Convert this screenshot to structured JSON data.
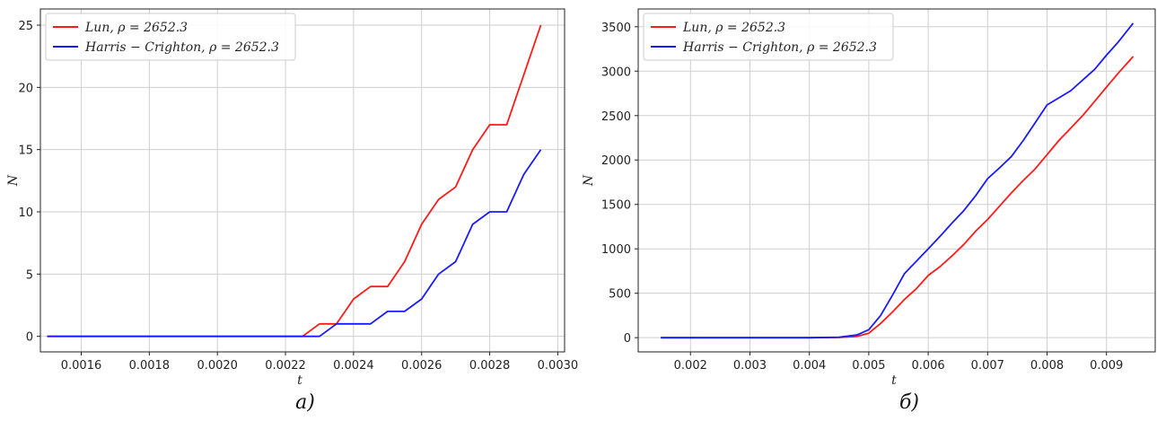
{
  "chart_data": [
    {
      "type": "line",
      "caption": "а)",
      "xlabel": "t",
      "ylabel": "N",
      "xlim": [
        0.00148,
        0.00302
      ],
      "ylim": [
        -1.25,
        26.3
      ],
      "xticks": [
        0.0016,
        0.0018,
        0.002,
        0.0022,
        0.0024,
        0.0026,
        0.0028,
        0.003
      ],
      "xtick_labels": [
        "0.0016",
        "0.0018",
        "0.0020",
        "0.0022",
        "0.0024",
        "0.0026",
        "0.0028",
        "0.0030"
      ],
      "yticks": [
        0,
        5,
        10,
        15,
        20,
        25
      ],
      "ytick_labels": [
        "0",
        "5",
        "10",
        "15",
        "20",
        "25"
      ],
      "grid": true,
      "legend_position": "top-left",
      "series": [
        {
          "name": "Lun, ρ = 2652.3",
          "color": "#ff1a1a",
          "x": [
            0.0015,
            0.00225,
            0.0023,
            0.00235,
            0.0024,
            0.00245,
            0.0025,
            0.00255,
            0.0026,
            0.00265,
            0.0027,
            0.00275,
            0.0028,
            0.00285,
            0.0029,
            0.00295
          ],
          "y": [
            0,
            0,
            1,
            1,
            3,
            4,
            4,
            6,
            9,
            11,
            12,
            15,
            17,
            17,
            21,
            25
          ]
        },
        {
          "name": "Harris − Crighton, ρ = 2652.3",
          "color": "#1a1aff",
          "x": [
            0.0015,
            0.0023,
            0.00235,
            0.0024,
            0.00245,
            0.0025,
            0.00255,
            0.0026,
            0.00265,
            0.0027,
            0.00275,
            0.0028,
            0.00285,
            0.0029,
            0.00295
          ],
          "y": [
            0,
            0,
            1,
            1,
            1,
            2,
            2,
            3,
            5,
            6,
            9,
            10,
            10,
            13,
            15
          ]
        }
      ]
    },
    {
      "type": "line",
      "caption": "б)",
      "xlabel": "t",
      "ylabel": "N",
      "xlim": [
        0.00112,
        0.00982
      ],
      "ylim": [
        -160,
        3700
      ],
      "xticks": [
        0.002,
        0.003,
        0.004,
        0.005,
        0.006,
        0.007,
        0.008,
        0.009
      ],
      "xtick_labels": [
        "0.002",
        "0.003",
        "0.004",
        "0.005",
        "0.006",
        "0.007",
        "0.008",
        "0.009"
      ],
      "yticks": [
        0,
        500,
        1000,
        1500,
        2000,
        2500,
        3000,
        3500
      ],
      "ytick_labels": [
        "0",
        "500",
        "1000",
        "1500",
        "2000",
        "2500",
        "3000",
        "3500"
      ],
      "grid": true,
      "legend_position": "top-left",
      "series": [
        {
          "name": "Lun, ρ = 2652.3",
          "color": "#ff1a1a",
          "x": [
            0.0015,
            0.004,
            0.0045,
            0.0048,
            0.005,
            0.0052,
            0.0054,
            0.0056,
            0.0058,
            0.006,
            0.0062,
            0.0064,
            0.0066,
            0.0068,
            0.007,
            0.0072,
            0.0074,
            0.0076,
            0.0078,
            0.008,
            0.0082,
            0.0084,
            0.0086,
            0.0088,
            0.009,
            0.0092,
            0.00945
          ],
          "y": [
            0,
            0,
            3,
            15,
            50,
            160,
            290,
            430,
            550,
            700,
            800,
            920,
            1050,
            1200,
            1330,
            1480,
            1630,
            1770,
            1900,
            2060,
            2220,
            2360,
            2500,
            2660,
            2820,
            2980,
            3165
          ]
        },
        {
          "name": "Harris − Crighton, ρ = 2652.3",
          "color": "#1a1aff",
          "x": [
            0.0015,
            0.004,
            0.0045,
            0.0048,
            0.005,
            0.0052,
            0.0054,
            0.0056,
            0.0058,
            0.006,
            0.0062,
            0.0064,
            0.0066,
            0.0068,
            0.007,
            0.0072,
            0.0074,
            0.0076,
            0.0078,
            0.008,
            0.0082,
            0.0084,
            0.0086,
            0.0088,
            0.009,
            0.0092,
            0.00945
          ],
          "y": [
            0,
            0,
            5,
            30,
            90,
            250,
            480,
            720,
            860,
            1000,
            1140,
            1290,
            1430,
            1600,
            1790,
            1910,
            2040,
            2220,
            2420,
            2620,
            2700,
            2780,
            2900,
            3020,
            3180,
            3330,
            3540
          ]
        }
      ]
    }
  ]
}
